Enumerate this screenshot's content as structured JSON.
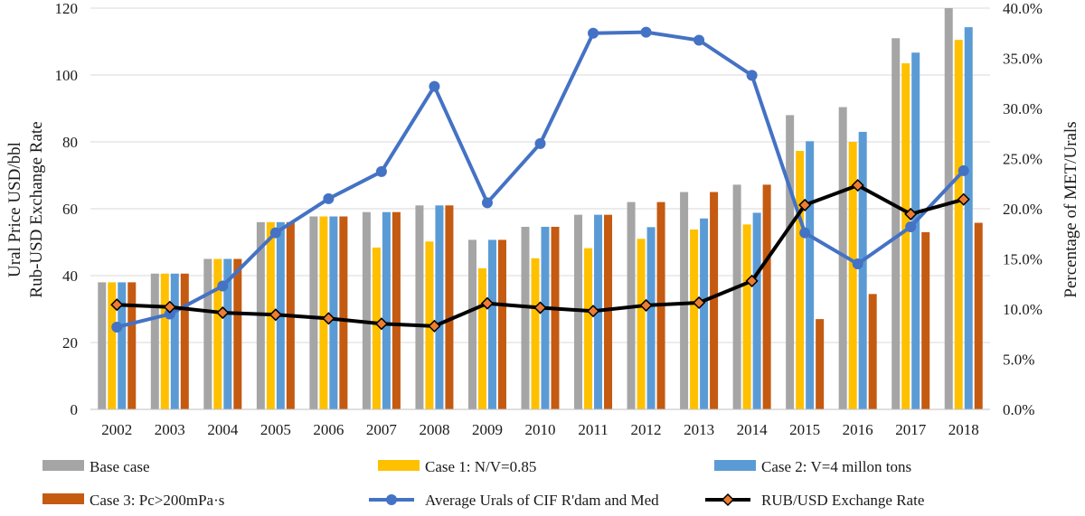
{
  "chart_data": {
    "type": "bar",
    "categories": [
      "2002",
      "2003",
      "2004",
      "2005",
      "2006",
      "2007",
      "2008",
      "2009",
      "2010",
      "2011",
      "2012",
      "2013",
      "2014",
      "2015",
      "2016",
      "2017",
      "2018"
    ],
    "ylabel_left": [
      "Ural Price USD/bbl",
      "Rub-USD Exchange Rate"
    ],
    "ylabel_right": "Percentage of MET/Urals",
    "ylim_left": [
      0,
      120
    ],
    "yticks_left": [
      "0",
      "20",
      "40",
      "60",
      "80",
      "100",
      "120"
    ],
    "ylim_right": [
      0,
      40
    ],
    "yticks_right": [
      "0.0%",
      "5.0%",
      "10.0%",
      "15.0%",
      "20.0%",
      "25.0%",
      "30.0%",
      "35.0%",
      "40.0%"
    ],
    "grid": true,
    "bar_series": [
      {
        "name": "Base case",
        "color": "#A5A5A5",
        "values": [
          38,
          40.6,
          45,
          56,
          57.7,
          59,
          61,
          50.7,
          54.6,
          58.2,
          62,
          65,
          67.2,
          88,
          90.4,
          111,
          120
        ]
      },
      {
        "name": "Case 1: N/V=0.85",
        "color": "#FFC000",
        "values": [
          38,
          40.6,
          45,
          56,
          57.7,
          48.4,
          50.2,
          42.2,
          45.2,
          48.2,
          51,
          53.8,
          55.3,
          77.3,
          80,
          103.5,
          110.5
        ]
      },
      {
        "name": "Case 2: V=4 millon tons",
        "color": "#5B9BD5",
        "values": [
          38,
          40.6,
          45,
          56,
          57.7,
          59,
          61,
          50.7,
          54.6,
          58.2,
          54.5,
          57.1,
          58.8,
          80.2,
          83,
          106.7,
          114.3
        ]
      },
      {
        "name": "Case 3: Pc>200mPa·s",
        "color": "#C55A11",
        "values": [
          38,
          40.6,
          45,
          56,
          57.7,
          59,
          61,
          50.7,
          54.6,
          58.2,
          62,
          65,
          67.2,
          27,
          34.5,
          53,
          55.8
        ]
      }
    ],
    "line_series": [
      {
        "name": "Average Urals of CIF R'dam and Med",
        "color": "#4472C4",
        "axis": "right",
        "marker": "circle",
        "values": [
          8.2,
          9.5,
          12.3,
          17.6,
          21.0,
          23.7,
          32.2,
          20.6,
          26.5,
          37.5,
          37.6,
          36.8,
          33.3,
          17.6,
          14.5,
          18.2,
          23.8
        ]
      },
      {
        "name": "RUB/USD Exchange Rate",
        "color": "#000000",
        "axis": "left",
        "marker": "diamond",
        "marker_color": "#ED7D31",
        "values": [
          31.3,
          30.6,
          28.9,
          28.3,
          27.2,
          25.6,
          24.9,
          31.7,
          30.4,
          29.4,
          31.1,
          31.9,
          38.4,
          61.1,
          67.0,
          58.4,
          62.8
        ]
      }
    ],
    "legend": {
      "position": "bottom",
      "items": [
        "Base case",
        "Case 1: N/V=0.85",
        "Case 2: V=4 millon tons",
        "Case 3: Pc>200mPa·s",
        "Average Urals of CIF R'dam and Med",
        "RUB/USD Exchange Rate"
      ]
    }
  }
}
